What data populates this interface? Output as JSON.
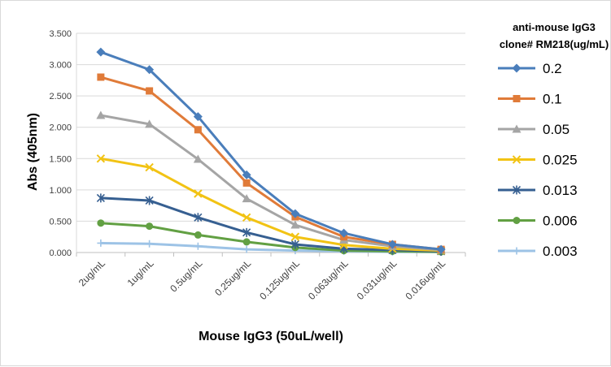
{
  "chart_data": {
    "type": "line",
    "title": "",
    "xlabel": "Mouse IgG3 (50uL/well)",
    "ylabel": "Abs (405nm)",
    "ylim": [
      0,
      3.5
    ],
    "yticks": [
      "0.000",
      "0.500",
      "1.000",
      "1.500",
      "2.000",
      "2.500",
      "3.000",
      "3.500"
    ],
    "grid": true,
    "legend_position": "right",
    "legend_title_lines": [
      "anti-mouse IgG3",
      "clone# RM218(ug/mL)"
    ],
    "categories": [
      "2ug/mL",
      "1ug/mL",
      "0.5ug/mL",
      "0.25ug/mL",
      "0.125ug/mL",
      "0.063ug/mL",
      "0.031ug/mL",
      "0.016ug/mL"
    ],
    "series": [
      {
        "name": "0.2",
        "color": "#4a7ebb",
        "marker": "diamond",
        "values": [
          3.2,
          2.92,
          2.17,
          1.24,
          0.62,
          0.31,
          0.13,
          0.05
        ]
      },
      {
        "name": "0.1",
        "color": "#e07b39",
        "marker": "square",
        "values": [
          2.8,
          2.58,
          1.96,
          1.11,
          0.57,
          0.25,
          0.13,
          0.05
        ]
      },
      {
        "name": "0.05",
        "color": "#a5a5a5",
        "marker": "triangle",
        "values": [
          2.19,
          2.05,
          1.49,
          0.86,
          0.44,
          0.2,
          0.1,
          0.04
        ]
      },
      {
        "name": "0.025",
        "color": "#f2c314",
        "marker": "x",
        "values": [
          1.5,
          1.36,
          0.94,
          0.56,
          0.25,
          0.12,
          0.06,
          0.03
        ]
      },
      {
        "name": "0.013",
        "color": "#365f91",
        "marker": "star",
        "values": [
          0.87,
          0.83,
          0.56,
          0.32,
          0.13,
          0.06,
          0.04,
          0.02
        ]
      },
      {
        "name": "0.006",
        "color": "#62a043",
        "marker": "circle",
        "values": [
          0.47,
          0.42,
          0.28,
          0.17,
          0.08,
          0.03,
          0.02,
          0.01
        ]
      },
      {
        "name": "0.003",
        "color": "#9dc3e6",
        "marker": "plus",
        "values": [
          0.15,
          0.14,
          0.1,
          0.05,
          0.03,
          0.02,
          0.01,
          0.01
        ]
      }
    ]
  }
}
